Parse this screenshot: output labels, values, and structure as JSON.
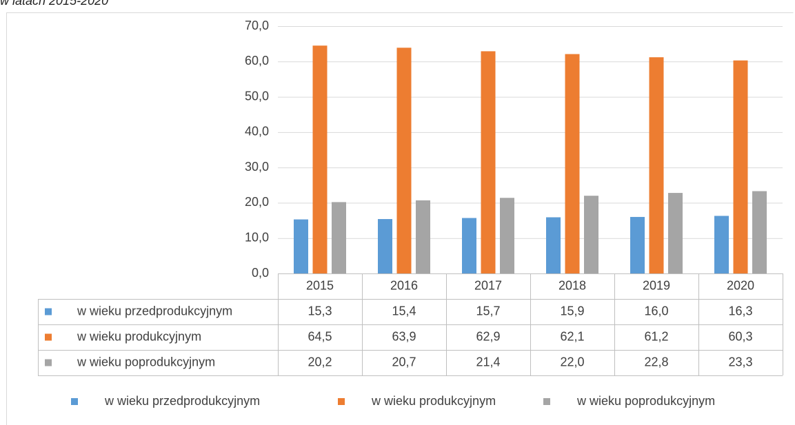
{
  "caption": "w latach 2015-2020",
  "chart_data": {
    "type": "bar",
    "categories": [
      "2015",
      "2016",
      "2017",
      "2018",
      "2019",
      "2020"
    ],
    "series": [
      {
        "name": "w wieku przedprodukcyjnym",
        "color": "#5b9bd5",
        "values": [
          15.3,
          15.4,
          15.7,
          15.9,
          16.0,
          16.3
        ],
        "value_labels": [
          "15,3",
          "15,4",
          "15,7",
          "15,9",
          "16,0",
          "16,3"
        ]
      },
      {
        "name": "w wieku produkcyjnym",
        "color": "#ed7d31",
        "values": [
          64.5,
          63.9,
          62.9,
          62.1,
          61.2,
          60.3
        ],
        "value_labels": [
          "64,5",
          "63,9",
          "62,9",
          "62,1",
          "61,2",
          "60,3"
        ]
      },
      {
        "name": "w wieku poprodukcyjnym",
        "color": "#a5a5a5",
        "values": [
          20.2,
          20.7,
          21.4,
          22.0,
          22.8,
          23.3
        ],
        "value_labels": [
          "20,2",
          "20,7",
          "21,4",
          "22,0",
          "22,8",
          "23,3"
        ]
      }
    ],
    "ylim": [
      0,
      70
    ],
    "yticks": [
      {
        "value": 0,
        "label": "0,0"
      },
      {
        "value": 10,
        "label": "10,0"
      },
      {
        "value": 20,
        "label": "20,0"
      },
      {
        "value": 30,
        "label": "30,0"
      },
      {
        "value": 40,
        "label": "40,0"
      },
      {
        "value": 50,
        "label": "50,0"
      },
      {
        "value": 60,
        "label": "60,0"
      },
      {
        "value": 70,
        "label": "70,0"
      }
    ],
    "grid": true,
    "legend": "bottom"
  }
}
